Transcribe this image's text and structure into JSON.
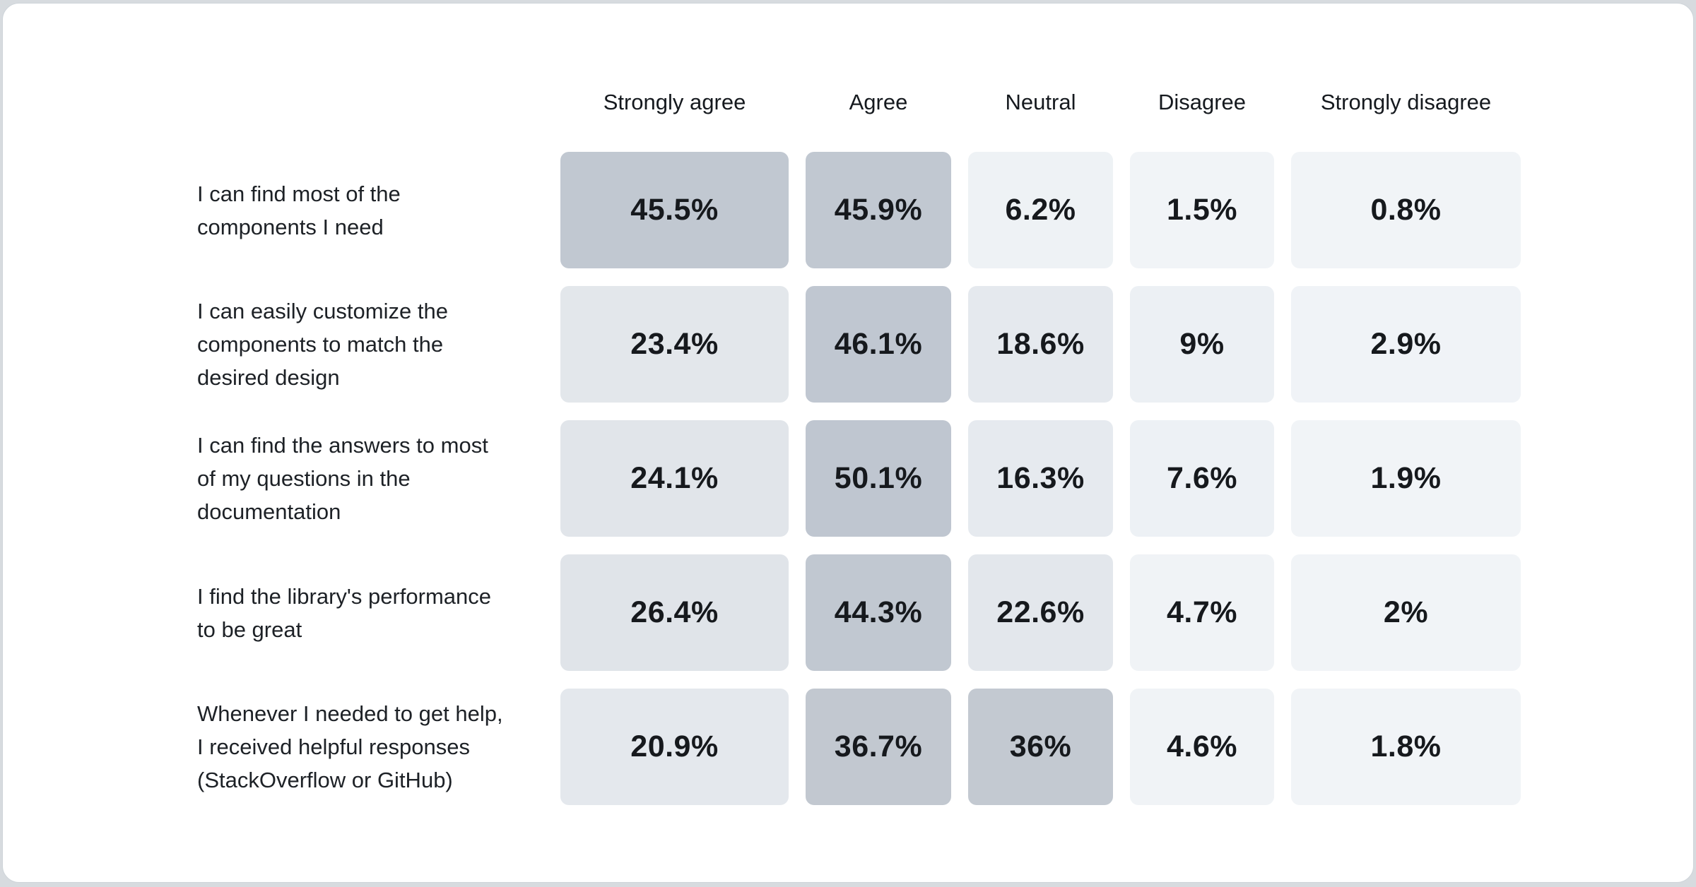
{
  "page": {
    "background_color": "#d7dbdf",
    "card_background": "#ffffff",
    "card_border_color": "#ced4d9",
    "header_text_color": "#15191e",
    "label_text_color": "#1d2126",
    "value_text_color": "#16191d"
  },
  "chart_data": {
    "type": "heatmap",
    "title": "",
    "unit": "%",
    "legend_position": "none",
    "grid": false,
    "columns": [
      "Strongly agree",
      "Agree",
      "Neutral",
      "Disagree",
      "Strongly disagree"
    ],
    "rows": [
      {
        "label": "I can find most of the components I need",
        "label_display": "I can find most of the\ncomponents I need",
        "values": [
          45.5,
          45.9,
          6.2,
          1.5,
          0.8
        ],
        "display": [
          "45.5%",
          "45.9%",
          "6.2%",
          "1.5%",
          "0.8%"
        ],
        "colors": [
          "#c1c8d1",
          "#c1c8d1",
          "#eef2f5",
          "#f1f4f7",
          "#f1f4f7"
        ]
      },
      {
        "label": "I can easily customize the components to match the desired design",
        "label_display": "I can easily customize the\ncomponents to match the\ndesired design",
        "values": [
          23.4,
          46.1,
          18.6,
          9,
          2.9
        ],
        "display": [
          "23.4%",
          "46.1%",
          "18.6%",
          "9%",
          "2.9%"
        ],
        "colors": [
          "#e3e7eb",
          "#c0c7d1",
          "#e5e9ee",
          "#ecf0f4",
          "#f0f3f7"
        ]
      },
      {
        "label": "I can find the answers to most of my questions in the documentation",
        "label_display": "I can find the answers to most\nof my questions in the\ndocumentation",
        "values": [
          24.1,
          50.1,
          16.3,
          7.6,
          1.9
        ],
        "display": [
          "24.1%",
          "50.1%",
          "16.3%",
          "7.6%",
          "1.9%"
        ],
        "colors": [
          "#e1e5ea",
          "#bfc6d0",
          "#e6eaef",
          "#edf1f5",
          "#f1f4f7"
        ]
      },
      {
        "label": "I find the library's performance to be great",
        "label_display": "I find the library's performance\nto be great",
        "values": [
          26.4,
          44.3,
          22.6,
          4.7,
          2
        ],
        "display": [
          "26.4%",
          "44.3%",
          "22.6%",
          "4.7%",
          "2%"
        ],
        "colors": [
          "#e0e4e9",
          "#c1c8d1",
          "#e3e7ec",
          "#f0f3f6",
          "#f1f4f7"
        ]
      },
      {
        "label": "Whenever I needed to get help, I received helpful responses (StackOverflow or GitHub)",
        "label_display": "Whenever I needed to get help,\nI received helpful responses\n(StackOverflow or GitHub)",
        "values": [
          20.9,
          36.7,
          36,
          4.6,
          1.8
        ],
        "display": [
          "20.9%",
          "36.7%",
          "36%",
          "4.6%",
          "1.8%"
        ],
        "colors": [
          "#e4e8ed",
          "#c2c8d0",
          "#c3c9d1",
          "#f0f3f6",
          "#f1f4f7"
        ]
      }
    ]
  }
}
